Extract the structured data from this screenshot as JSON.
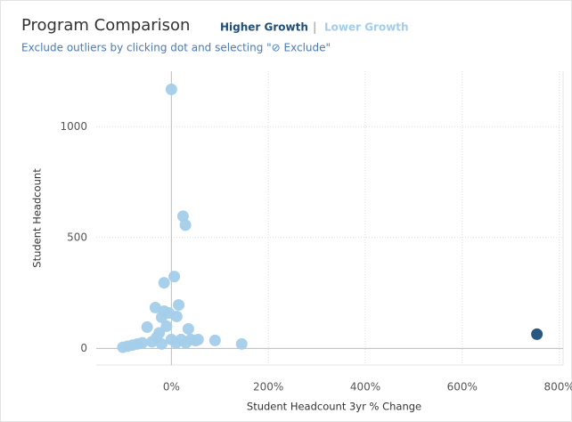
{
  "chart_data": {
    "type": "scatter",
    "title": "Program Comparison",
    "subtitle": "Exclude outliers by clicking dot and selecting \"⊘ Exclude\"",
    "x_label": "Student Headcount 3yr % Change",
    "y_label": "Student Headcount",
    "xlim": [
      -155,
      808
    ],
    "ylim": [
      -75,
      1250
    ],
    "xticks": [
      {
        "value": 0,
        "label": "0%"
      },
      {
        "value": 200,
        "label": "200%"
      },
      {
        "value": 400,
        "label": "400%"
      },
      {
        "value": 600,
        "label": "600%"
      },
      {
        "value": 800,
        "label": "800%"
      }
    ],
    "yticks": [
      0,
      500,
      1000
    ],
    "grid": true,
    "series": [
      {
        "name": "Higher Growth",
        "color": "#1f4e79",
        "x": [
          754
        ],
        "values": [
          64
        ]
      },
      {
        "name": "Lower Growth",
        "color": "#a3cde9",
        "x": [
          0,
          24,
          29,
          6,
          -15,
          -33,
          -15,
          -5,
          15,
          11,
          -20,
          -10,
          -50,
          35,
          -25,
          -30,
          0,
          20,
          40,
          55,
          90,
          145,
          -80,
          -90,
          -100,
          -70,
          -60,
          -40,
          -20,
          10,
          30,
          50
        ],
        "values": [
          1168,
          596,
          556,
          324,
          296,
          184,
          168,
          160,
          196,
          144,
          140,
          100,
          96,
          88,
          70,
          50,
          40,
          40,
          40,
          40,
          36,
          20,
          15,
          10,
          5,
          20,
          25,
          30,
          20,
          25,
          25,
          35
        ]
      }
    ]
  }
}
